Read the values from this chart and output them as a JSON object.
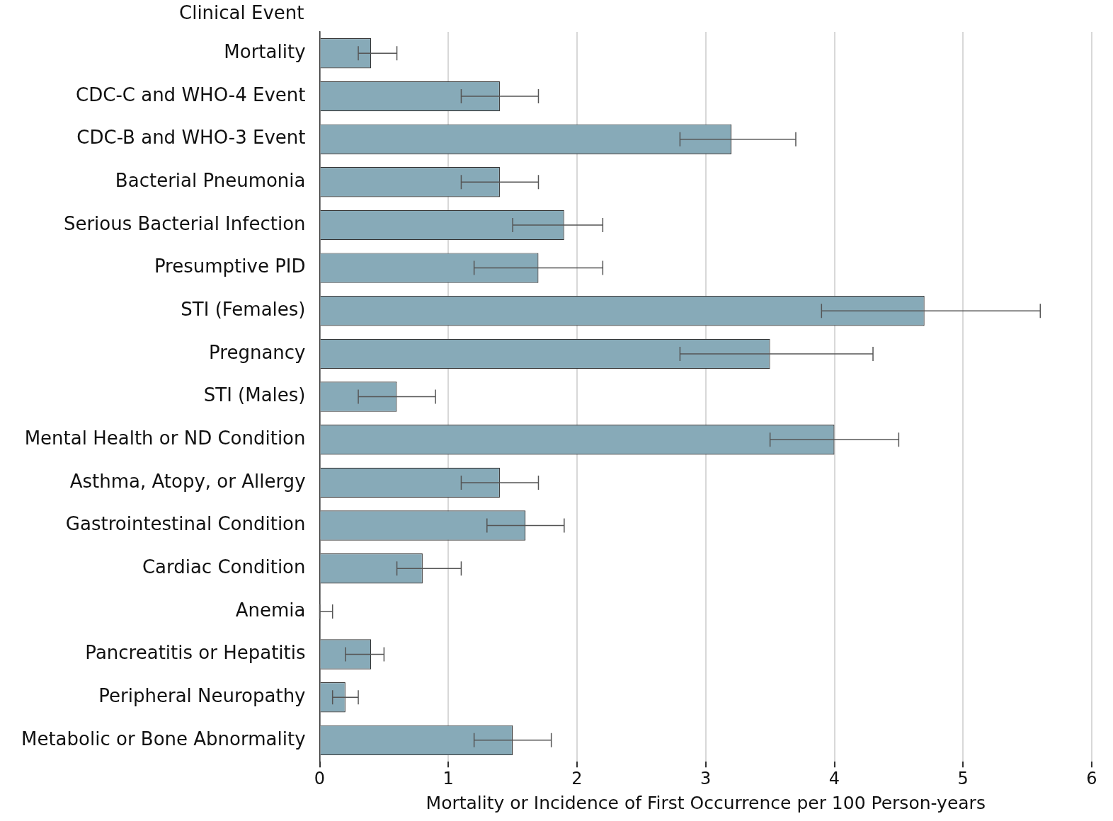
{
  "chart_data": {
    "type": "bar",
    "orientation": "horizontal",
    "ylabel": "Clinical Event",
    "xlabel": "Mortality or Incidence of First Occurrence per 100 Person-years",
    "categories": [
      "Mortality",
      "CDC-C and WHO-4 Event",
      "CDC-B and WHO-3 Event",
      "Bacterial Pneumonia",
      "Serious Bacterial Infection",
      "Presumptive PID",
      "STI (Females)",
      "Pregnancy",
      "STI (Males)",
      "Mental Health or ND Condition",
      "Asthma, Atopy, or Allergy",
      "Gastrointestinal Condition",
      "Cardiac Condition",
      "Anemia",
      "Pancreatitis or Hepatitis",
      "Peripheral Neuropathy",
      "Metabolic or Bone Abnormality"
    ],
    "values": [
      0.4,
      1.4,
      3.2,
      1.4,
      1.9,
      1.7,
      4.7,
      3.5,
      0.6,
      4.0,
      1.4,
      1.6,
      0.8,
      0,
      0.4,
      0.2,
      1.5
    ],
    "errors": [
      [
        0.3,
        0.6
      ],
      [
        1.1,
        1.7
      ],
      [
        2.8,
        3.7
      ],
      [
        1.1,
        1.7
      ],
      [
        1.5,
        2.2
      ],
      [
        1.2,
        2.2
      ],
      [
        3.9,
        5.6
      ],
      [
        2.8,
        4.3
      ],
      [
        0.3,
        0.9
      ],
      [
        3.5,
        4.5
      ],
      [
        1.1,
        1.7
      ],
      [
        1.3,
        1.9
      ],
      [
        0.6,
        1.1
      ],
      [
        0,
        0.1
      ],
      [
        0.2,
        0.5
      ],
      [
        0.1,
        0.3
      ],
      [
        1.2,
        1.8
      ]
    ],
    "color": "#87aab8",
    "xlim": [
      0,
      6
    ],
    "xticks": [
      0,
      1,
      2,
      3,
      4,
      5,
      6
    ],
    "grid": "x",
    "legend": false
  }
}
